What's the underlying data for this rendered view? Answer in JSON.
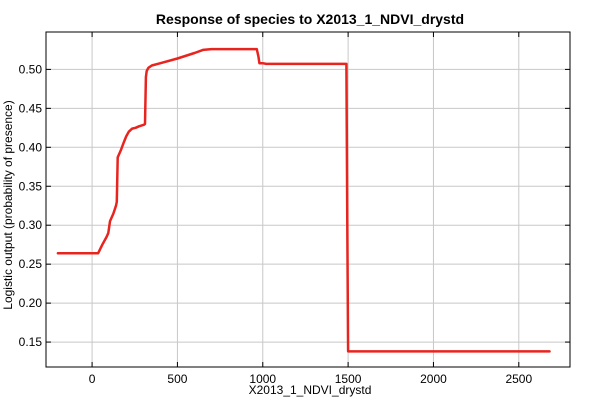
{
  "chart_data": {
    "type": "line",
    "title": "Response of species to X2013_1_NDVI_drystd",
    "xlabel": "X2013_1_NDVI_drystd",
    "ylabel": "Logistic output (probability of presence)",
    "xlim": [
      -270,
      2800
    ],
    "ylim": [
      0.118,
      0.548
    ],
    "xticks": [
      0,
      500,
      1000,
      1500,
      2000,
      2500
    ],
    "yticks": [
      0.15,
      0.2,
      0.25,
      0.3,
      0.35,
      0.4,
      0.45,
      0.5
    ],
    "ytick_labels": [
      "0.15",
      "0.20",
      "0.25",
      "0.30",
      "0.35",
      "0.40",
      "0.45",
      "0.50"
    ],
    "grid": true,
    "series": [
      {
        "color": "#e8241f",
        "x": [
          -200,
          35,
          60,
          85,
          95,
          105,
          125,
          140,
          145,
          150,
          170,
          185,
          200,
          215,
          235,
          255,
          275,
          305,
          310,
          315,
          320,
          330,
          350,
          400,
          500,
          600,
          650,
          700,
          800,
          900,
          965,
          975,
          980,
          1000,
          1020,
          1050,
          1100,
          1200,
          1300,
          1400,
          1490,
          1495,
          1500,
          1510,
          2000,
          2500,
          2680
        ],
        "y": [
          0.264,
          0.264,
          0.275,
          0.285,
          0.29,
          0.305,
          0.315,
          0.325,
          0.33,
          0.387,
          0.397,
          0.406,
          0.414,
          0.42,
          0.424,
          0.425,
          0.427,
          0.429,
          0.43,
          0.49,
          0.498,
          0.502,
          0.505,
          0.508,
          0.514,
          0.521,
          0.525,
          0.526,
          0.526,
          0.526,
          0.526,
          0.516,
          0.508,
          0.508,
          0.507,
          0.507,
          0.507,
          0.507,
          0.507,
          0.507,
          0.507,
          0.3,
          0.138,
          0.138,
          0.138,
          0.138,
          0.138
        ]
      }
    ]
  }
}
